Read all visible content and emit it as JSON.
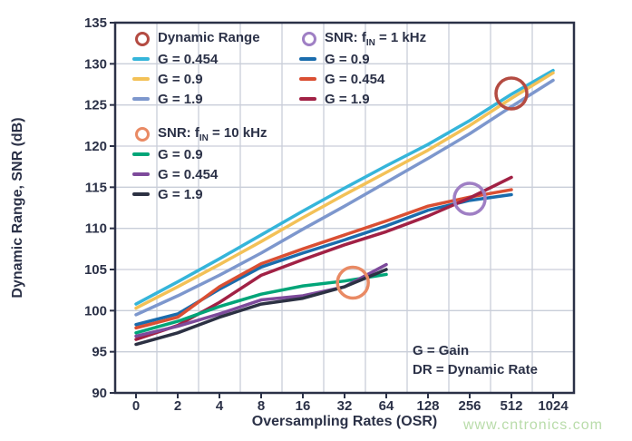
{
  "figure": {
    "background": "#ffffff",
    "text_color": "#2b3147",
    "grid_color": "#c9ced9"
  },
  "watermark": {
    "text": "www.cntronics.com",
    "color": "#b9dcaa"
  },
  "annotation": {
    "line1": "G = Gain",
    "line2": "DR = Dynamic Rate"
  },
  "legends": [
    {
      "title": {
        "prefix": "Dynamic Range",
        "sub": "",
        "suffix": ""
      },
      "circle_color": "#b44b42",
      "items": [
        {
          "label": "G = 0.454",
          "color": "#35b5da"
        },
        {
          "label": "G = 0.9",
          "color": "#f3c157"
        },
        {
          "label": "G = 1.9",
          "color": "#7d97cd"
        }
      ]
    },
    {
      "title": {
        "prefix": "SNR: f",
        "sub": "IN",
        "suffix": " = 1 kHz"
      },
      "circle_color": "#9f7fc4",
      "items": [
        {
          "label": "G = 0.9",
          "color": "#1a6cad"
        },
        {
          "label": "G = 0.454",
          "color": "#da4f33"
        },
        {
          "label": "G = 1.9",
          "color": "#a12145"
        }
      ]
    },
    {
      "title": {
        "prefix": "SNR: f",
        "sub": "IN",
        "suffix": " = 10 kHz"
      },
      "circle_color": "#e98a64",
      "items": [
        {
          "label": "G = 0.9",
          "color": "#00a578"
        },
        {
          "label": "G = 0.454",
          "color": "#7d4a9b"
        },
        {
          "label": "G = 1.9",
          "color": "#2c3143"
        }
      ]
    }
  ],
  "chart_data": {
    "type": "line",
    "title": "",
    "xlabel": "Oversampling Rates (OSR)",
    "ylabel": "Dynamic Range, SNR (dB)",
    "x_categories": [
      "0",
      "2",
      "4",
      "8",
      "16",
      "32",
      "64",
      "128",
      "256",
      "512",
      "1024"
    ],
    "ylim": [
      90,
      135
    ],
    "y_step": 5,
    "grid": true,
    "legend_position": "inside-top",
    "series": [
      {
        "name": "dr-g-0.454",
        "group": "Dynamic Range",
        "label": "G = 0.454",
        "color": "#35b5da",
        "values": [
          100.8,
          103.5,
          106.3,
          109.2,
          112.1,
          114.9,
          117.6,
          120.2,
          123.1,
          126.3,
          129.2
        ]
      },
      {
        "name": "dr-g-0.9",
        "group": "Dynamic Range",
        "label": "G = 0.9",
        "color": "#f3c157",
        "values": [
          100.3,
          102.9,
          105.6,
          108.4,
          111.3,
          114.1,
          116.8,
          119.5,
          122.5,
          125.8,
          128.9
        ]
      },
      {
        "name": "dr-g-1.9",
        "group": "Dynamic Range",
        "label": "G = 1.9",
        "color": "#7d97cd",
        "values": [
          99.5,
          101.8,
          104.3,
          107.0,
          109.9,
          112.7,
          115.6,
          118.5,
          121.5,
          124.8,
          128.0
        ]
      },
      {
        "name": "snr-1khz-g-0.9",
        "group": "SNR: fIN = 1 kHz",
        "label": "G = 0.9",
        "color": "#1a6cad",
        "values": [
          98.3,
          99.6,
          102.6,
          105.3,
          107.0,
          108.6,
          110.3,
          112.2,
          113.4,
          114.1
        ]
      },
      {
        "name": "snr-1khz-g-0.454",
        "group": "SNR: fIN = 1 kHz",
        "label": "G = 0.454",
        "color": "#da4f33",
        "values": [
          97.9,
          99.2,
          102.9,
          105.7,
          107.5,
          109.2,
          110.9,
          112.7,
          113.8,
          114.7
        ]
      },
      {
        "name": "snr-1khz-g-1.9",
        "group": "SNR: fIN = 1 kHz",
        "label": "G = 1.9",
        "color": "#a12145",
        "values": [
          96.5,
          98.2,
          101.0,
          104.3,
          106.2,
          108.0,
          109.6,
          111.5,
          113.7,
          116.2
        ]
      },
      {
        "name": "snr-10khz-g-0.9",
        "group": "SNR: fIN = 10 kHz",
        "label": "G = 0.9",
        "color": "#00a578",
        "values": [
          97.3,
          98.7,
          100.5,
          102.0,
          103.0,
          103.6,
          104.4
        ]
      },
      {
        "name": "snr-10khz-g-0.454",
        "group": "SNR: fIN = 10 kHz",
        "label": "G = 0.454",
        "color": "#7d4a9b",
        "values": [
          96.9,
          98.1,
          99.6,
          101.3,
          101.8,
          102.9,
          105.6
        ]
      },
      {
        "name": "snr-10khz-g-1.9",
        "group": "SNR: fIN = 10 kHz",
        "label": "G = 1.9",
        "color": "#2c3143",
        "values": [
          95.9,
          97.3,
          99.2,
          100.8,
          101.5,
          102.9,
          105.0
        ]
      }
    ],
    "marker_circles": [
      {
        "name": "dynamic-range-marker",
        "color": "#b44b42",
        "band_index": 9,
        "value": 126.4
      },
      {
        "name": "snr-1khz-marker",
        "color": "#9f7fc4",
        "band_index": 8,
        "value": 113.6
      },
      {
        "name": "snr-10khz-marker",
        "color": "#e98a64",
        "band_index": 5.2,
        "value": 103.4
      }
    ]
  }
}
